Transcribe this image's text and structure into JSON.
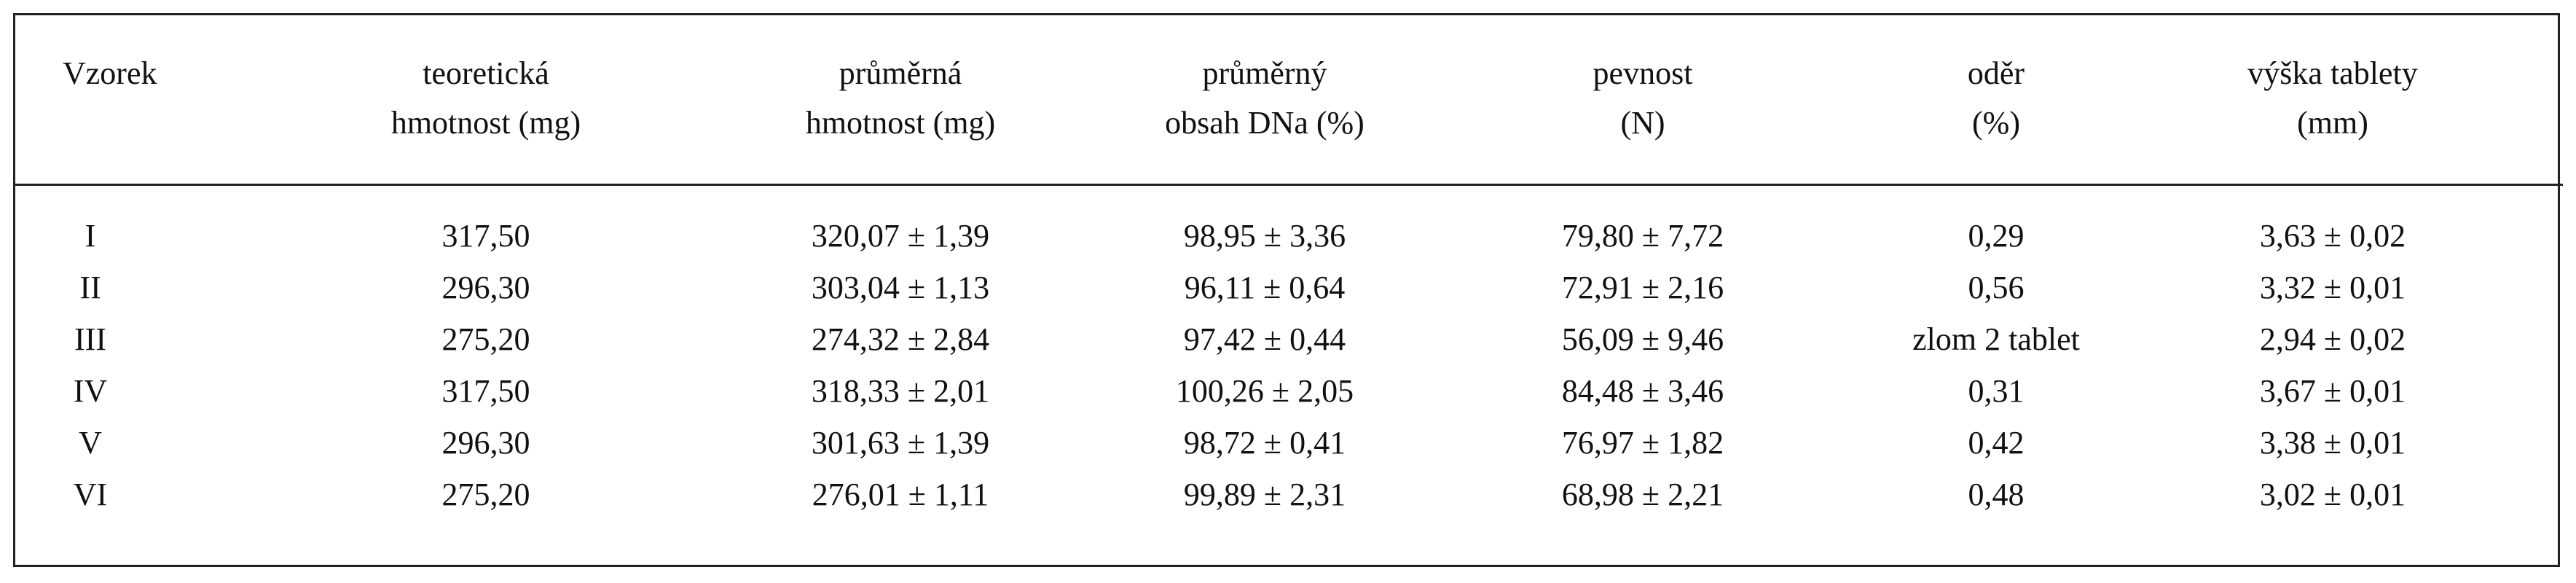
{
  "table": {
    "header": [
      [
        "Vzorek"
      ],
      [
        "teoretická",
        "hmotnost (mg)"
      ],
      [
        "průměrná",
        "hmotnost (mg)"
      ],
      [
        "průměrný",
        "obsah DNa (%)"
      ],
      [
        "pevnost",
        "(N)"
      ],
      [
        "oděr",
        "(%)"
      ],
      [
        "výška tablety",
        "(mm)"
      ]
    ],
    "rows": [
      [
        "I",
        "317,50",
        "320,07 ± 1,39",
        "98,95 ± 3,36",
        "79,80 ± 7,72",
        "0,29",
        "3,63 ± 0,02"
      ],
      [
        "II",
        "296,30",
        "303,04 ± 1,13",
        "96,11 ± 0,64",
        "72,91 ± 2,16",
        "0,56",
        "3,32 ± 0,01"
      ],
      [
        "III",
        "275,20",
        "274,32 ± 2,84",
        "97,42 ± 0,44",
        "56,09 ± 9,46",
        "zlom 2 tablet",
        "2,94 ± 0,02"
      ],
      [
        "IV",
        "317,50",
        "318,33 ± 2,01",
        "100,26 ± 2,05",
        "84,48 ± 3,46",
        "0,31",
        "3,67 ± 0,01"
      ],
      [
        "V",
        "296,30",
        "301,63 ± 1,39",
        "98,72 ± 0,41",
        "76,97 ± 1,82",
        "0,42",
        "3,38 ± 0,01"
      ],
      [
        "VI",
        "275,20",
        "276,01 ± 1,11",
        "99,89 ± 2,31",
        "68,98 ± 2,21",
        "0,48",
        "3,02 ± 0,01"
      ]
    ]
  }
}
